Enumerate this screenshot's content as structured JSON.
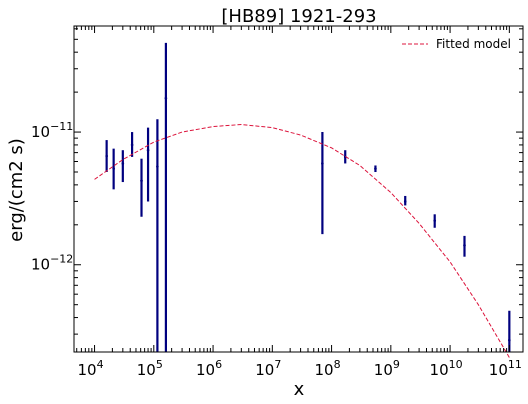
{
  "chart_data": {
    "type": "scatter",
    "title": "[HB89] 1921-293",
    "xlabel": "x",
    "ylabel": "erg/(cm2 s)",
    "xscale": "log",
    "yscale": "log",
    "xlim": [
      4500,
      170000000000.0
    ],
    "ylim": [
      2.2e-13,
      6.3e-11
    ],
    "grid": false,
    "legend": {
      "position": "top-right",
      "entries": [
        "Fitted model"
      ]
    },
    "x_ticks": [
      {
        "base": "10",
        "exp": "4"
      },
      {
        "base": "10",
        "exp": "5"
      },
      {
        "base": "10",
        "exp": "6"
      },
      {
        "base": "10",
        "exp": "7"
      },
      {
        "base": "10",
        "exp": "8"
      },
      {
        "base": "10",
        "exp": "9"
      },
      {
        "base": "10",
        "exp": "10"
      },
      {
        "base": "10",
        "exp": "11"
      }
    ],
    "y_ticks": [
      {
        "base": "10",
        "exp": "−11"
      },
      {
        "base": "10",
        "exp": "−12"
      }
    ],
    "series": [
      {
        "kind": "errorbar",
        "color": "#00007f",
        "points": [
          {
            "x": 16000.0,
            "y": 6.6e-12,
            "lo": 5e-12,
            "hi": 8.7e-12
          },
          {
            "x": 21000.0,
            "y": 5.3e-12,
            "lo": 3.7e-12,
            "hi": 7.5e-12
          },
          {
            "x": 30000.0,
            "y": 5.8e-12,
            "lo": 4.2e-12,
            "hi": 7.3e-12
          },
          {
            "x": 43000.0,
            "y": 8e-12,
            "lo": 6.5e-12,
            "hi": 1e-11
          },
          {
            "x": 62000.0,
            "y": 4.3e-12,
            "lo": 2.3e-12,
            "hi": 6.3e-12
          },
          {
            "x": 80000.0,
            "y": 7.3e-12,
            "lo": 3e-12,
            "hi": 1.08e-11
          },
          {
            "x": 115000.0,
            "y": 5.5e-12,
            "lo": 2.2e-13,
            "hi": 1.25e-11
          },
          {
            "x": 160000.0,
            "y": 1.8e-11,
            "lo": 2.2e-13,
            "hi": 4.7e-11
          },
          {
            "x": 70000000.0,
            "y": 5.8e-12,
            "lo": 1.7e-12,
            "hi": 1e-11
          },
          {
            "x": 170000000.0,
            "y": 6.5e-12,
            "lo": 5.8e-12,
            "hi": 7.3e-12
          },
          {
            "x": 550000000.0,
            "y": 5.3e-12,
            "lo": 5e-12,
            "hi": 5.6e-12
          },
          {
            "x": 1750000000.0,
            "y": 3e-12,
            "lo": 2.8e-12,
            "hi": 3.3e-12
          },
          {
            "x": 5500000000.0,
            "y": 2.15e-12,
            "lo": 1.9e-12,
            "hi": 2.4e-12
          },
          {
            "x": 17500000000.0,
            "y": 1.4e-12,
            "lo": 1.15e-12,
            "hi": 1.65e-12
          },
          {
            "x": 100000000000.0,
            "y": 2.7e-13,
            "lo": 2.2e-13,
            "hi": 4.5e-13
          }
        ]
      },
      {
        "kind": "line",
        "name": "Fitted model",
        "color": "#dc143c",
        "dashed": true,
        "x": [
          10000.0,
          30000.0,
          100000.0,
          300000.0,
          1000000.0,
          3000000.0,
          10000000.0,
          30000000.0,
          100000000.0,
          300000000.0,
          1000000000.0,
          3000000000.0,
          10000000000.0,
          30000000000.0,
          100000000000.0
        ],
        "y": [
          4.4e-12,
          6.2e-12,
          8.4e-12,
          1e-11,
          1.1e-11,
          1.14e-11,
          1.08e-11,
          9.5e-12,
          7.6e-12,
          5.6e-12,
          3.5e-12,
          2.05e-12,
          1.05e-12,
          5e-13,
          2e-13
        ]
      }
    ]
  }
}
